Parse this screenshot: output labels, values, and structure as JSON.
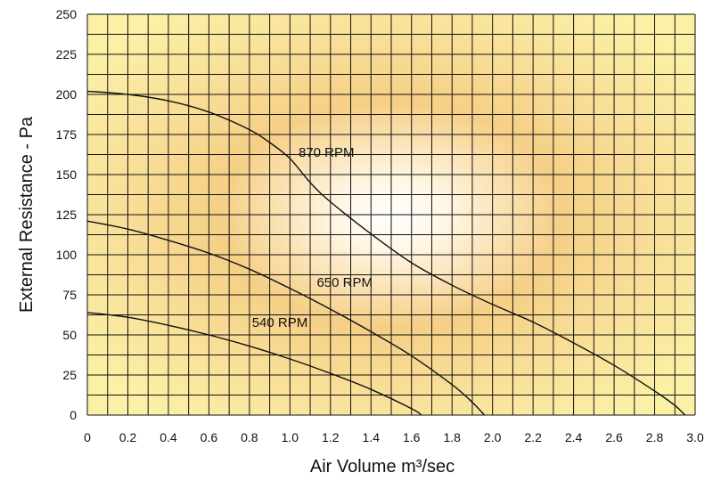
{
  "chart_data": {
    "type": "line",
    "title": "",
    "xlabel": "Air Volume m³/sec",
    "ylabel": "External Resistance - Pa",
    "xlim": [
      0,
      3.0
    ],
    "ylim": [
      0,
      250
    ],
    "xticks": [
      "0",
      "0.2",
      "0.4",
      "0.6",
      "0.8",
      "1.0",
      "1.2",
      "1.4",
      "1.6",
      "1.8",
      "2.0",
      "2.2",
      "2.4",
      "2.6",
      "2.8",
      "3.0"
    ],
    "yticks": [
      "0",
      "25",
      "50",
      "75",
      "100",
      "125",
      "150",
      "175",
      "200",
      "225",
      "250"
    ],
    "grid": true,
    "series": [
      {
        "name": "870 RPM",
        "x": [
          0,
          0.2,
          0.4,
          0.6,
          0.8,
          0.9,
          1.0,
          1.1,
          1.2,
          1.4,
          1.6,
          1.8,
          2.0,
          2.2,
          2.4,
          2.6,
          2.8,
          2.9,
          2.95
        ],
        "y": [
          202,
          200,
          196,
          189,
          178,
          170,
          160,
          145,
          133,
          113,
          95,
          81,
          69,
          58,
          45,
          31,
          15,
          6,
          0
        ]
      },
      {
        "name": "650 RPM",
        "x": [
          0,
          0.2,
          0.4,
          0.6,
          0.8,
          1.0,
          1.2,
          1.4,
          1.6,
          1.8,
          1.9,
          1.96
        ],
        "y": [
          121,
          116,
          109,
          101,
          91,
          79,
          66,
          52,
          37,
          19,
          8,
          0
        ]
      },
      {
        "name": "540 RPM",
        "x": [
          0,
          0.2,
          0.4,
          0.6,
          0.8,
          1.0,
          1.2,
          1.4,
          1.6,
          1.65
        ],
        "y": [
          64,
          61,
          56,
          50,
          43,
          35,
          26,
          16,
          4,
          0
        ]
      }
    ],
    "annotations": [
      {
        "text": "870 RPM",
        "x": 1.18,
        "y": 161
      },
      {
        "text": "650 RPM",
        "x": 1.27,
        "y": 80
      },
      {
        "text": "540 RPM",
        "x": 0.95,
        "y": 55
      }
    ],
    "colors": {
      "background_outer": "#fbf0a6",
      "background_mid": "#f6cf86",
      "background_center": "#ffffff",
      "lines": "#111111"
    }
  }
}
